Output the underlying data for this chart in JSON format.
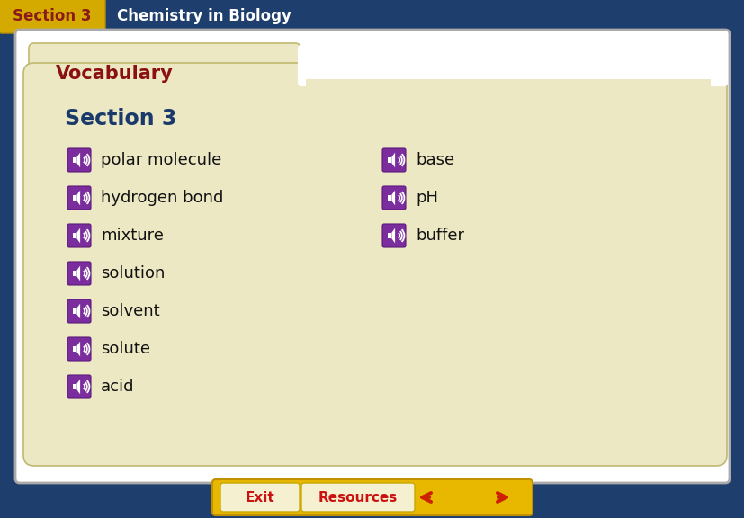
{
  "bg_color": "#1e3f6e",
  "header_bg": "#c8a800",
  "header_text": "Section 3",
  "header_text_color": "#8b1a1a",
  "header_subtitle": "Chemistry in Biology",
  "header_subtitle_color": "#ffffff",
  "folder_color": "#ede8c4",
  "vocab_label": "Vocabulary",
  "vocab_label_color": "#8b1010",
  "section_label": "Section 3",
  "section_label_color": "#1a3a6b",
  "left_terms": [
    "polar molecule",
    "hydrogen bond",
    "mixture",
    "solution",
    "solvent",
    "solute",
    "acid"
  ],
  "right_terms": [
    "base",
    "pH",
    "buffer"
  ],
  "term_color": "#111111",
  "icon_bg_color": "#7b2d9e",
  "icon_edge_color": "#5a1a7a",
  "exit_text": "Exit",
  "exit_text_color": "#cc1111",
  "resources_text": "Resources",
  "resources_text_color": "#cc1111",
  "footer_btn_color": "#e8b800",
  "footer_btn_edge": "#c09000",
  "arrow_color": "#cc2200",
  "white_frame_color": "#ffffff",
  "white_frame_edge": "#aaaaaa"
}
